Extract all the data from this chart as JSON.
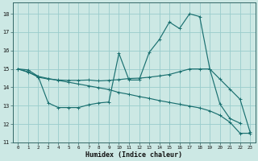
{
  "xlabel": "Humidex (Indice chaleur)",
  "background_color": "#cce8e4",
  "grid_color": "#99cccc",
  "line_color": "#1a7070",
  "xlim": [
    -0.5,
    23.5
  ],
  "ylim": [
    11,
    18.6
  ],
  "yticks": [
    11,
    12,
    13,
    14,
    15,
    16,
    17,
    18
  ],
  "xticks": [
    0,
    1,
    2,
    3,
    4,
    5,
    6,
    7,
    8,
    9,
    10,
    11,
    12,
    13,
    14,
    15,
    16,
    17,
    18,
    19,
    20,
    21,
    22,
    23
  ],
  "series": [
    {
      "x": [
        0,
        1,
        2,
        3,
        4,
        5,
        6,
        7,
        8,
        9,
        10,
        11,
        12,
        13,
        14,
        15,
        16,
        17,
        18,
        19,
        20,
        21,
        22
      ],
      "y": [
        15.0,
        14.95,
        14.6,
        13.15,
        12.9,
        12.9,
        12.9,
        13.05,
        13.15,
        13.2,
        15.85,
        14.4,
        14.4,
        15.9,
        16.6,
        17.55,
        17.2,
        18.0,
        17.85,
        15.0,
        13.1,
        12.3,
        12.05
      ]
    },
    {
      "x": [
        0,
        1,
        2,
        3,
        4,
        5,
        6,
        7,
        8,
        9,
        10,
        11,
        12,
        13,
        14,
        15,
        16,
        17,
        18,
        19,
        20,
        21,
        22,
        23
      ],
      "y": [
        15.0,
        14.85,
        14.55,
        14.45,
        14.4,
        14.38,
        14.38,
        14.4,
        14.35,
        14.38,
        14.42,
        14.48,
        14.5,
        14.55,
        14.62,
        14.7,
        14.85,
        15.0,
        15.0,
        15.0,
        14.45,
        13.9,
        13.35,
        11.55
      ]
    },
    {
      "x": [
        0,
        1,
        2,
        3,
        4,
        5,
        6,
        7,
        8,
        9,
        10,
        11,
        12,
        13,
        14,
        15,
        16,
        17,
        18,
        19,
        20,
        21,
        22,
        23
      ],
      "y": [
        15.0,
        14.82,
        14.6,
        14.48,
        14.38,
        14.28,
        14.18,
        14.08,
        13.98,
        13.88,
        13.72,
        13.62,
        13.5,
        13.4,
        13.28,
        13.18,
        13.08,
        12.98,
        12.88,
        12.72,
        12.48,
        12.1,
        11.5,
        11.5
      ]
    }
  ]
}
